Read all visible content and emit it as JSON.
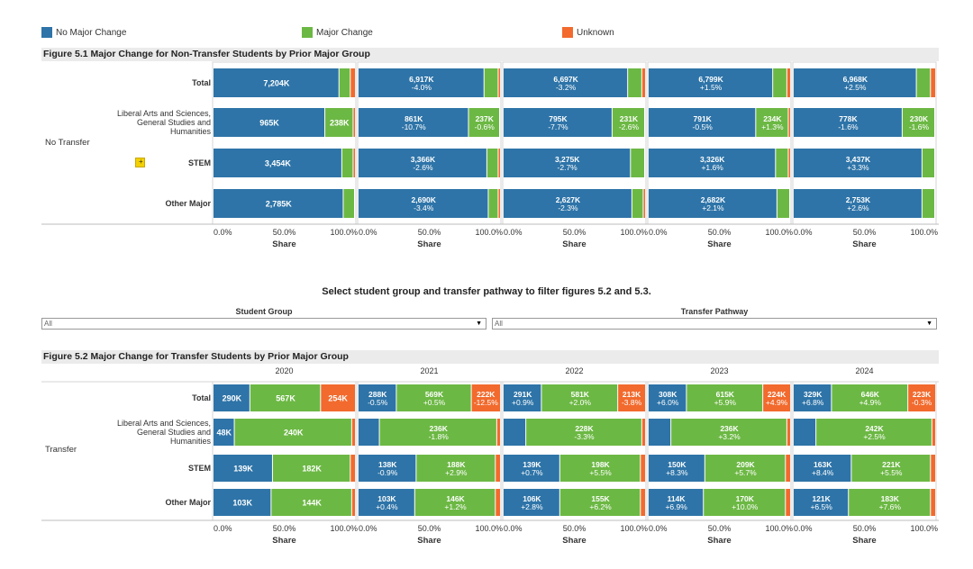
{
  "legend": [
    {
      "label": "No Major Change",
      "color": "#2e74a8"
    },
    {
      "label": "Major Change",
      "color": "#6cb844"
    },
    {
      "label": "Unknown",
      "color": "#f26a2d"
    }
  ],
  "colors": {
    "no_change": "#2e74a8",
    "change": "#6cb844",
    "unknown": "#f26a2d"
  },
  "fig1": {
    "title": "Figure 5.1 Major Change for Non-Transfer Students by Prior Major Group",
    "group_label": "No Transfer",
    "rows": [
      "Total",
      "Liberal Arts and Sciences, General Studies and Humanities",
      "STEM",
      "Other Major"
    ],
    "row_lines": [
      [
        "Total"
      ],
      [
        "Liberal Arts and Sciences,",
        "General Studies and",
        "Humanities"
      ],
      [
        "STEM"
      ],
      [
        "Other Major"
      ]
    ]
  },
  "filter": {
    "title": "Select student group and transfer pathway to filter figures 5.2 and 5.3.",
    "student_group_label": "Student Group",
    "student_group_value": "All",
    "pathway_label": "Transfer Pathway",
    "pathway_value": "All"
  },
  "fig2": {
    "title": "Figure 5.2 Major Change for Transfer Students by Prior Major Group",
    "group_label": "Transfer",
    "years": [
      "2020",
      "2021",
      "2022",
      "2023",
      "2024"
    ],
    "rows": [
      "Total",
      "Liberal Arts and Sciences, General Studies and Humanities",
      "STEM",
      "Other Major"
    ],
    "row_lines": [
      [
        "Total"
      ],
      [
        "Liberal Arts and Sciences,",
        "General Studies and",
        "Humanities"
      ],
      [
        "STEM"
      ],
      [
        "Other Major"
      ]
    ]
  },
  "axis": {
    "ticks": [
      "0.0%",
      "50.0%",
      "100.0%"
    ],
    "xlabel": "Share"
  },
  "chart_data": [
    {
      "type": "bar",
      "stacked": true,
      "orientation": "horizontal",
      "title": "Figure 5.1 Major Change for Non-Transfer Students by Prior Major Group",
      "xlabel": "Share",
      "xlim": [
        0,
        100
      ],
      "panels": [
        {
          "rows": [
            {
              "shares": [
                89,
                8,
                3
              ],
              "labels": [
                [
                  "7,204K"
                ],
                [],
                []
              ]
            },
            {
              "shares": [
                79,
                20,
                1
              ],
              "labels": [
                [
                  "965K"
                ],
                [
                  "238K"
                ],
                []
              ]
            },
            {
              "shares": [
                91,
                8,
                1
              ],
              "labels": [
                [
                  "3,454K"
                ],
                [],
                []
              ]
            },
            {
              "shares": [
                92,
                8,
                0
              ],
              "labels": [
                [
                  "2,785K"
                ],
                [],
                []
              ]
            }
          ]
        },
        {
          "rows": [
            {
              "shares": [
                89,
                10,
                1
              ],
              "labels": [
                [
                  "6,917K",
                  "-4.0%"
                ],
                [],
                []
              ]
            },
            {
              "shares": [
                78,
                22,
                0
              ],
              "labels": [
                [
                  "861K",
                  "-10.7%"
                ],
                [
                  "237K",
                  "-0.6%"
                ],
                []
              ]
            },
            {
              "shares": [
                91,
                8,
                1
              ],
              "labels": [
                [
                  "3,366K",
                  "-2.6%"
                ],
                [],
                []
              ]
            },
            {
              "shares": [
                92,
                7,
                1
              ],
              "labels": [
                [
                  "2,690K",
                  "-3.4%"
                ],
                [],
                []
              ]
            }
          ]
        },
        {
          "rows": [
            {
              "shares": [
                88,
                10,
                2
              ],
              "labels": [
                [
                  "6,697K",
                  "-3.2%"
                ],
                [],
                []
              ]
            },
            {
              "shares": [
                77,
                23,
                0
              ],
              "labels": [
                [
                  "795K",
                  "-7.7%"
                ],
                [
                  "231K",
                  "-2.6%"
                ],
                []
              ]
            },
            {
              "shares": [
                90,
                10,
                0
              ],
              "labels": [
                [
                  "3,275K",
                  "-2.7%"
                ],
                [],
                []
              ]
            },
            {
              "shares": [
                91,
                8,
                1
              ],
              "labels": [
                [
                  "2,627K",
                  "-2.3%"
                ],
                [],
                []
              ]
            }
          ]
        },
        {
          "rows": [
            {
              "shares": [
                88,
                10,
                2
              ],
              "labels": [
                [
                  "6,799K",
                  "+1.5%"
                ],
                [],
                []
              ]
            },
            {
              "shares": [
                76,
                23,
                1
              ],
              "labels": [
                [
                  "791K",
                  "-0.5%"
                ],
                [
                  "234K",
                  "+1.3%"
                ],
                []
              ]
            },
            {
              "shares": [
                90,
                9,
                1
              ],
              "labels": [
                [
                  "3,326K",
                  "+1.6%"
                ],
                [],
                []
              ]
            },
            {
              "shares": [
                91,
                9,
                0
              ],
              "labels": [
                [
                  "2,682K",
                  "+2.1%"
                ],
                [],
                []
              ]
            }
          ]
        },
        {
          "rows": [
            {
              "shares": [
                87,
                10,
                3
              ],
              "labels": [
                [
                  "6,968K",
                  "+2.5%"
                ],
                [],
                []
              ]
            },
            {
              "shares": [
                77,
                23,
                0
              ],
              "labels": [
                [
                  "778K",
                  "-1.6%"
                ],
                [
                  "230K",
                  "-1.6%"
                ],
                []
              ]
            },
            {
              "shares": [
                91,
                9,
                0
              ],
              "labels": [
                [
                  "3,437K",
                  "+3.3%"
                ],
                [],
                []
              ]
            },
            {
              "shares": [
                91,
                9,
                0
              ],
              "labels": [
                [
                  "2,753K",
                  "+2.6%"
                ],
                [],
                []
              ]
            }
          ]
        }
      ]
    },
    {
      "type": "bar",
      "stacked": true,
      "orientation": "horizontal",
      "title": "Figure 5.2 Major Change for Transfer Students by Prior Major Group",
      "xlabel": "Share",
      "xlim": [
        0,
        100
      ],
      "categories": [
        "2020",
        "2021",
        "2022",
        "2023",
        "2024"
      ],
      "panels": [
        {
          "rows": [
            {
              "shares": [
                26,
                50,
                24
              ],
              "labels": [
                [
                  "290K"
                ],
                [
                  "567K"
                ],
                [
                  "254K"
                ]
              ]
            },
            {
              "shares": [
                15,
                83,
                2
              ],
              "labels": [
                [
                  "48K"
                ],
                [
                  "240K"
                ],
                []
              ]
            },
            {
              "shares": [
                42,
                55,
                3
              ],
              "labels": [
                [
                  "139K"
                ],
                [
                  "182K"
                ],
                []
              ]
            },
            {
              "shares": [
                41,
                57,
                2
              ],
              "labels": [
                [
                  "103K"
                ],
                [
                  "144K"
                ],
                []
              ]
            }
          ]
        },
        {
          "rows": [
            {
              "shares": [
                27,
                53,
                20
              ],
              "labels": [
                [
                  "288K",
                  "-0.5%"
                ],
                [
                  "569K",
                  "+0.5%"
                ],
                [
                  "222K",
                  "-12.5%"
                ]
              ]
            },
            {
              "shares": [
                15,
                83,
                2
              ],
              "labels": [
                [],
                [
                  "236K",
                  "-1.8%"
                ],
                []
              ]
            },
            {
              "shares": [
                41,
                56,
                3
              ],
              "labels": [
                [
                  "138K",
                  "-0.9%"
                ],
                [
                  "188K",
                  "+2.9%"
                ],
                []
              ]
            },
            {
              "shares": [
                40,
                57,
                3
              ],
              "labels": [
                [
                  "103K",
                  "+0.4%"
                ],
                [
                  "146K",
                  "+1.2%"
                ],
                []
              ]
            }
          ]
        },
        {
          "rows": [
            {
              "shares": [
                27,
                54,
                19
              ],
              "labels": [
                [
                  "291K",
                  "+0.9%"
                ],
                [
                  "581K",
                  "+2.0%"
                ],
                [
                  "213K",
                  "-3.8%"
                ]
              ]
            },
            {
              "shares": [
                16,
                82,
                2
              ],
              "labels": [
                [],
                [
                  "228K",
                  "-3.3%"
                ],
                []
              ]
            },
            {
              "shares": [
                40,
                57,
                3
              ],
              "labels": [
                [
                  "139K",
                  "+0.7%"
                ],
                [
                  "198K",
                  "+5.5%"
                ],
                []
              ]
            },
            {
              "shares": [
                40,
                57,
                3
              ],
              "labels": [
                [
                  "106K",
                  "+2.8%"
                ],
                [
                  "155K",
                  "+6.2%"
                ],
                []
              ]
            }
          ]
        },
        {
          "rows": [
            {
              "shares": [
                27,
                54,
                19
              ],
              "labels": [
                [
                  "308K",
                  "+6.0%"
                ],
                [
                  "615K",
                  "+5.9%"
                ],
                [
                  "224K",
                  "+4.9%"
                ]
              ]
            },
            {
              "shares": [
                16,
                82,
                2
              ],
              "labels": [
                [],
                [
                  "236K",
                  "+3.2%"
                ],
                []
              ]
            },
            {
              "shares": [
                40,
                57,
                3
              ],
              "labels": [
                [
                  "150K",
                  "+8.3%"
                ],
                [
                  "209K",
                  "+5.7%"
                ],
                []
              ]
            },
            {
              "shares": [
                39,
                58,
                3
              ],
              "labels": [
                [
                  "114K",
                  "+6.9%"
                ],
                [
                  "170K",
                  "+10.0%"
                ],
                []
              ]
            }
          ]
        },
        {
          "rows": [
            {
              "shares": [
                27,
                54,
                19
              ],
              "labels": [
                [
                  "329K",
                  "+6.8%"
                ],
                [
                  "646K",
                  "+4.9%"
                ],
                [
                  "223K",
                  "-0.3%"
                ]
              ]
            },
            {
              "shares": [
                16,
                82,
                2
              ],
              "labels": [
                [],
                [
                  "242K",
                  "+2.5%"
                ],
                []
              ]
            },
            {
              "shares": [
                41,
                56,
                3
              ],
              "labels": [
                [
                  "163K",
                  "+8.4%"
                ],
                [
                  "221K",
                  "+5.5%"
                ],
                []
              ]
            },
            {
              "shares": [
                39,
                58,
                3
              ],
              "labels": [
                [
                  "121K",
                  "+6.5%"
                ],
                [
                  "183K",
                  "+7.6%"
                ],
                []
              ]
            }
          ]
        }
      ]
    }
  ]
}
